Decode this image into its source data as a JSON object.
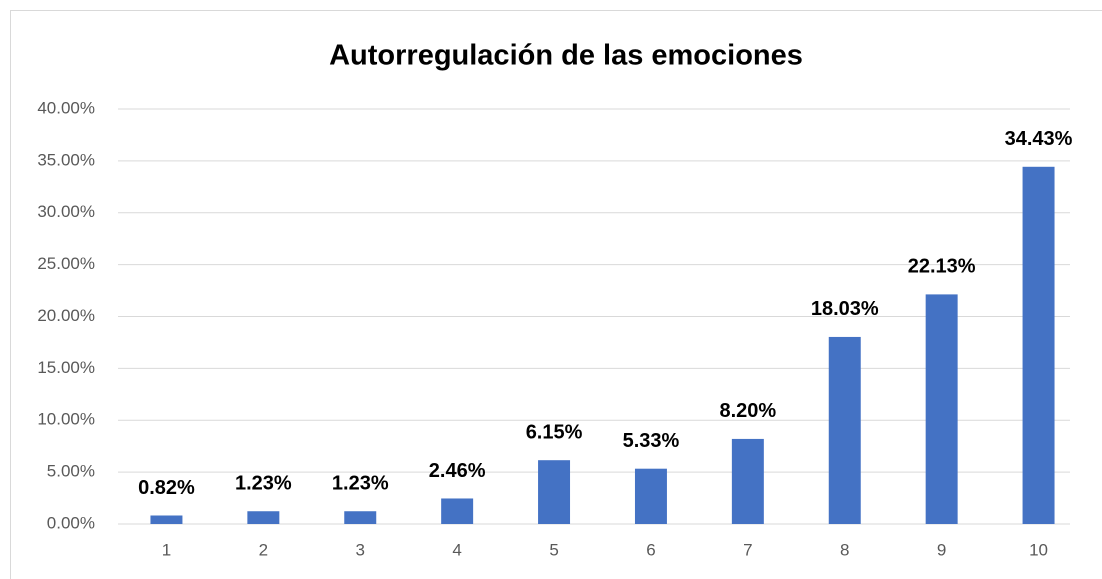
{
  "chart_data": {
    "type": "bar",
    "title": "Autorregulación de las emociones",
    "categories": [
      "1",
      "2",
      "3",
      "4",
      "5",
      "6",
      "7",
      "8",
      "9",
      "10"
    ],
    "values": [
      0.82,
      1.23,
      1.23,
      2.46,
      6.15,
      5.33,
      8.2,
      18.03,
      22.13,
      34.43
    ],
    "value_labels": [
      "0.82%",
      "1.23%",
      "1.23%",
      "2.46%",
      "6.15%",
      "5.33%",
      "8.20%",
      "18.03%",
      "22.13%",
      "34.43%"
    ],
    "color": "#4472c4",
    "ylim": [
      0,
      40
    ],
    "yticks": [
      {
        "value": 0,
        "label": "0.00%"
      },
      {
        "value": 5,
        "label": "5.00%"
      },
      {
        "value": 10,
        "label": "10.00%"
      },
      {
        "value": 15,
        "label": "15.00%"
      },
      {
        "value": 20,
        "label": "20.00%"
      },
      {
        "value": 25,
        "label": "25.00%"
      },
      {
        "value": 30,
        "label": "30.00%"
      },
      {
        "value": 35,
        "label": "35.00%"
      },
      {
        "value": 40,
        "label": "40.00%"
      }
    ],
    "grid": true
  }
}
